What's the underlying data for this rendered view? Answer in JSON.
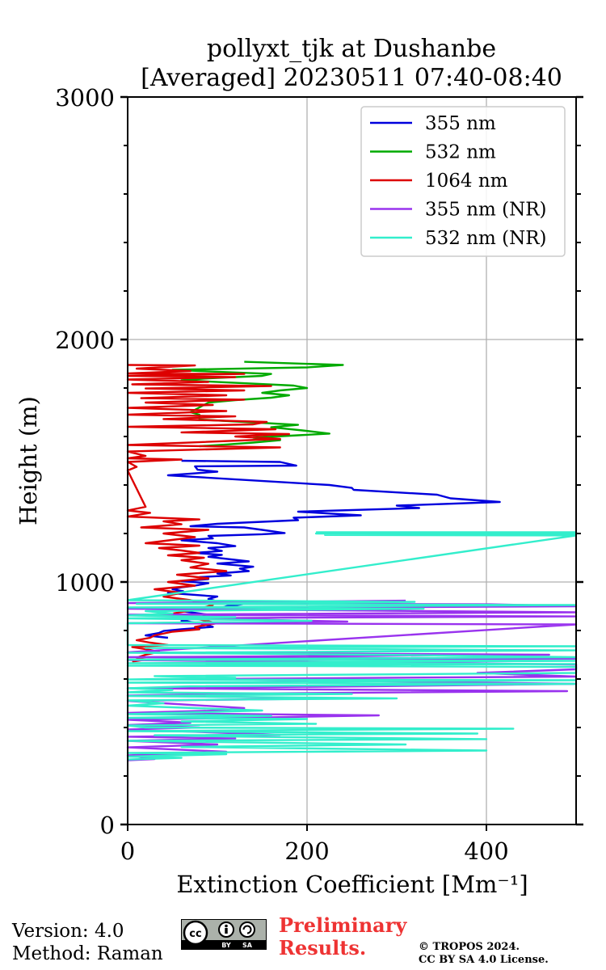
{
  "footer": {
    "version": "Version: 4.0",
    "method": "Method: Raman",
    "preliminary_line1": "Preliminary",
    "preliminary_line2": "Results.",
    "copyright_line1": "© TROPOS 2024.",
    "copyright_line2": "CC BY SA 4.0 License."
  },
  "badge": {
    "by": "BY",
    "sa": "SA"
  },
  "chart_data": {
    "type": "line",
    "title_lines": [
      "pollyxt_tjk at Dushanbe",
      "[Averaged] 20230511 07:40-08:40"
    ],
    "xlabel": "Extinction Coefficient [Mm⁻¹]",
    "ylabel": "Height (m)",
    "xlim": [
      0,
      500
    ],
    "ylim": [
      0,
      3000
    ],
    "xticks": [
      0,
      200,
      400
    ],
    "yticks": [
      0,
      1000,
      2000,
      3000
    ],
    "grid": true,
    "legend_position": "top-right",
    "series": [
      {
        "name": "355 nm",
        "color": "#0000dd",
        "points": [
          [
            60,
            1500
          ],
          [
            170,
            1495
          ],
          [
            188,
            1480
          ],
          [
            75,
            1477
          ],
          [
            78,
            1463
          ],
          [
            100,
            1455
          ],
          [
            45,
            1440
          ],
          [
            225,
            1400
          ],
          [
            250,
            1388
          ],
          [
            252,
            1380
          ],
          [
            345,
            1360
          ],
          [
            360,
            1345
          ],
          [
            415,
            1330
          ],
          [
            300,
            1315
          ],
          [
            325,
            1305
          ],
          [
            190,
            1290
          ],
          [
            260,
            1275
          ],
          [
            185,
            1265
          ],
          [
            190,
            1255
          ],
          [
            100,
            1240
          ],
          [
            70,
            1230
          ],
          [
            130,
            1225
          ],
          [
            150,
            1215
          ],
          [
            175,
            1202
          ],
          [
            150,
            1197
          ],
          [
            90,
            1190
          ],
          [
            95,
            1180
          ],
          [
            60,
            1172
          ],
          [
            100,
            1160
          ],
          [
            120,
            1148
          ],
          [
            90,
            1140
          ],
          [
            105,
            1128
          ],
          [
            75,
            1120
          ],
          [
            105,
            1112
          ],
          [
            90,
            1104
          ],
          [
            135,
            1085
          ],
          [
            100,
            1076
          ],
          [
            140,
            1063
          ],
          [
            125,
            1055
          ],
          [
            135,
            1045
          ],
          [
            100,
            1035
          ],
          [
            115,
            1027
          ],
          [
            80,
            1020
          ],
          [
            90,
            1012
          ],
          [
            60,
            1003
          ],
          [
            90,
            995
          ],
          [
            75,
            985
          ],
          [
            60,
            978
          ],
          [
            50,
            970
          ],
          [
            62,
            962
          ],
          [
            45,
            955
          ],
          [
            100,
            940
          ],
          [
            90,
            930
          ],
          [
            100,
            920
          ],
          [
            135,
            912
          ],
          [
            110,
            900
          ],
          [
            100,
            890
          ],
          [
            60,
            880
          ],
          [
            90,
            865
          ],
          [
            75,
            850
          ],
          [
            60,
            840
          ],
          [
            80,
            830
          ],
          [
            95,
            815
          ],
          [
            60,
            805
          ],
          [
            40,
            798
          ],
          [
            35,
            790
          ],
          [
            20,
            780
          ],
          [
            45,
            770
          ]
        ]
      },
      {
        "name": "532 nm",
        "color": "#00aa00",
        "points": [
          [
            130,
            1908
          ],
          [
            240,
            1895
          ],
          [
            200,
            1885
          ],
          [
            50,
            1875
          ],
          [
            80,
            1870
          ],
          [
            160,
            1858
          ],
          [
            150,
            1850
          ],
          [
            90,
            1840
          ],
          [
            60,
            1832
          ],
          [
            185,
            1810
          ],
          [
            200,
            1800
          ],
          [
            170,
            1790
          ],
          [
            150,
            1780
          ],
          [
            180,
            1770
          ],
          [
            160,
            1760
          ],
          [
            120,
            1750
          ],
          [
            90,
            1740
          ],
          [
            70,
            1700
          ],
          [
            80,
            1690
          ],
          [
            80,
            1670
          ],
          [
            130,
            1660
          ],
          [
            190,
            1648
          ],
          [
            160,
            1638
          ],
          [
            195,
            1625
          ],
          [
            225,
            1612
          ],
          [
            190,
            1605
          ],
          [
            140,
            1595
          ],
          [
            170,
            1585
          ],
          [
            140,
            1575
          ],
          [
            110,
            1567
          ],
          [
            80,
            1560
          ]
        ]
      },
      {
        "name": "1064 nm",
        "color": "#dd0000",
        "points": [
          [
            0,
            1895
          ],
          [
            75,
            1893
          ],
          [
            10,
            1880
          ],
          [
            70,
            1870
          ],
          [
            0,
            1860
          ],
          [
            130,
            1858
          ],
          [
            0,
            1850
          ],
          [
            120,
            1845
          ],
          [
            0,
            1835
          ],
          [
            90,
            1825
          ],
          [
            5,
            1815
          ],
          [
            160,
            1808
          ],
          [
            20,
            1798
          ],
          [
            130,
            1790
          ],
          [
            0,
            1780
          ],
          [
            110,
            1770
          ],
          [
            15,
            1758
          ],
          [
            130,
            1752
          ],
          [
            20,
            1740
          ],
          [
            95,
            1730
          ],
          [
            0,
            1718
          ],
          [
            110,
            1705
          ],
          [
            0,
            1690
          ],
          [
            120,
            1683
          ],
          [
            40,
            1672
          ],
          [
            155,
            1660
          ],
          [
            140,
            1650
          ],
          [
            0,
            1640
          ],
          [
            165,
            1630
          ],
          [
            60,
            1617
          ],
          [
            180,
            1610
          ],
          [
            120,
            1600
          ],
          [
            170,
            1590
          ],
          [
            0,
            1565
          ],
          [
            170,
            1555
          ],
          [
            0,
            1538
          ],
          [
            20,
            1520
          ],
          [
            0,
            1510
          ],
          [
            60,
            1505
          ],
          [
            0,
            1495
          ],
          [
            10,
            1475
          ],
          [
            0,
            1460
          ],
          [
            20,
            1310
          ],
          [
            0,
            1295
          ],
          [
            25,
            1285
          ],
          [
            0,
            1270
          ],
          [
            80,
            1258
          ],
          [
            40,
            1250
          ],
          [
            60,
            1238
          ],
          [
            15,
            1225
          ],
          [
            90,
            1215
          ],
          [
            40,
            1200
          ],
          [
            75,
            1185
          ],
          [
            20,
            1160
          ],
          [
            80,
            1150
          ],
          [
            35,
            1140
          ],
          [
            60,
            1130
          ],
          [
            80,
            1120
          ],
          [
            45,
            1110
          ],
          [
            85,
            1100
          ],
          [
            60,
            1090
          ],
          [
            90,
            1075
          ],
          [
            70,
            1060
          ],
          [
            110,
            1045
          ],
          [
            55,
            1030
          ],
          [
            90,
            1015
          ],
          [
            45,
            1000
          ],
          [
            75,
            985
          ],
          [
            30,
            970
          ],
          [
            60,
            955
          ],
          [
            40,
            940
          ],
          [
            70,
            925
          ],
          [
            95,
            905
          ],
          [
            75,
            885
          ],
          [
            50,
            870
          ],
          [
            100,
            830
          ],
          [
            75,
            815
          ],
          [
            80,
            805
          ],
          [
            50,
            795
          ],
          [
            30,
            780
          ],
          [
            25,
            770
          ],
          [
            10,
            760
          ],
          [
            25,
            750
          ],
          [
            45,
            740
          ],
          [
            5,
            732
          ],
          [
            25,
            720
          ],
          [
            35,
            712
          ],
          [
            20,
            700
          ],
          [
            10,
            688
          ],
          [
            20,
            680
          ],
          [
            5,
            672
          ]
        ]
      },
      {
        "name": "355 nm (NR)",
        "color": "#9933ee",
        "points": [
          [
            310,
            923
          ],
          [
            0,
            913
          ],
          [
            405,
            908
          ],
          [
            500,
            900
          ],
          [
            0,
            890
          ],
          [
            500,
            875
          ],
          [
            0,
            865
          ],
          [
            500,
            858
          ],
          [
            20,
            850
          ],
          [
            140,
            845
          ],
          [
            245,
            837
          ],
          [
            0,
            830
          ],
          [
            500,
            825
          ],
          [
            0,
            710
          ],
          [
            470,
            700
          ],
          [
            0,
            690
          ],
          [
            500,
            684
          ],
          [
            0,
            678
          ],
          [
            500,
            660
          ],
          [
            500,
            640
          ],
          [
            390,
            625
          ],
          [
            500,
            610
          ],
          [
            85,
            600
          ],
          [
            500,
            580
          ],
          [
            270,
            570
          ],
          [
            0,
            562
          ],
          [
            490,
            550
          ],
          [
            130,
            540
          ],
          [
            0,
            532
          ],
          [
            230,
            520
          ],
          [
            0,
            510
          ],
          [
            40,
            500
          ],
          [
            130,
            480
          ],
          [
            100,
            470
          ],
          [
            0,
            460
          ],
          [
            280,
            450
          ],
          [
            130,
            440
          ],
          [
            0,
            432
          ],
          [
            70,
            420
          ],
          [
            0,
            410
          ],
          [
            80,
            400
          ],
          [
            0,
            392
          ],
          [
            170,
            370
          ],
          [
            0,
            362
          ],
          [
            120,
            355
          ],
          [
            0,
            345
          ],
          [
            100,
            330
          ],
          [
            0,
            318
          ],
          [
            110,
            300
          ],
          [
            0,
            285
          ],
          [
            30,
            270
          ],
          [
            0,
            265
          ]
        ]
      },
      {
        "name": "532 nm (NR)",
        "color": "#33eecc",
        "points": [
          [
            210,
            1205
          ],
          [
            500,
            1205
          ],
          [
            500,
            1203
          ],
          [
            210,
            1200
          ],
          [
            500,
            1198
          ],
          [
            500,
            1196
          ],
          [
            220,
            1194
          ],
          [
            500,
            1192
          ],
          [
            0,
            925
          ],
          [
            320,
            918
          ],
          [
            10,
            910
          ],
          [
            500,
            905
          ],
          [
            0,
            895
          ],
          [
            330,
            890
          ],
          [
            20,
            880
          ],
          [
            50,
            870
          ],
          [
            0,
            862
          ],
          [
            120,
            855
          ],
          [
            0,
            850
          ],
          [
            205,
            840
          ],
          [
            0,
            830
          ],
          [
            0,
            740
          ],
          [
            500,
            735
          ],
          [
            20,
            728
          ],
          [
            500,
            718
          ],
          [
            0,
            708
          ],
          [
            280,
            700
          ],
          [
            500,
            690
          ],
          [
            0,
            680
          ],
          [
            500,
            675
          ],
          [
            0,
            665
          ],
          [
            500,
            662
          ],
          [
            0,
            655
          ],
          [
            500,
            650
          ],
          [
            500,
            625
          ],
          [
            30,
            612
          ],
          [
            120,
            605
          ],
          [
            0,
            598
          ],
          [
            500,
            595
          ],
          [
            0,
            585
          ],
          [
            500,
            580
          ],
          [
            70,
            570
          ],
          [
            0,
            562
          ],
          [
            50,
            555
          ],
          [
            0,
            545
          ],
          [
            250,
            538
          ],
          [
            0,
            530
          ],
          [
            300,
            520
          ],
          [
            0,
            512
          ],
          [
            40,
            500
          ],
          [
            0,
            490
          ],
          [
            150,
            470
          ],
          [
            0,
            455
          ],
          [
            160,
            448
          ],
          [
            0,
            440
          ],
          [
            200,
            435
          ],
          [
            60,
            425
          ],
          [
            210,
            415
          ],
          [
            0,
            408
          ],
          [
            20,
            400
          ],
          [
            430,
            395
          ],
          [
            0,
            385
          ],
          [
            390,
            375
          ],
          [
            30,
            368
          ],
          [
            130,
            362
          ],
          [
            400,
            352
          ],
          [
            0,
            345
          ],
          [
            310,
            330
          ],
          [
            60,
            320
          ],
          [
            400,
            305
          ],
          [
            0,
            295
          ],
          [
            110,
            290
          ],
          [
            0,
            280
          ],
          [
            60,
            275
          ],
          [
            0,
            268
          ]
        ]
      }
    ]
  }
}
